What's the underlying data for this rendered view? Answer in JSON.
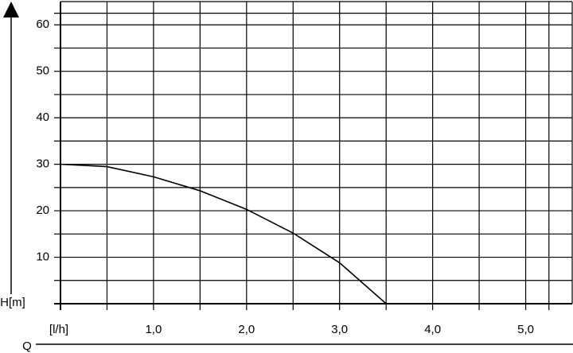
{
  "chart_data": {
    "type": "line",
    "x_label": "[l/h]",
    "x_name": "Q",
    "y_label": "H[m]",
    "x": [
      0,
      0.5,
      1.0,
      1.5,
      2.0,
      2.5,
      3.0,
      3.5
    ],
    "series": [
      {
        "name": "H",
        "color": "#000000",
        "values": [
          30,
          29.5,
          27.3,
          24.3,
          20.3,
          15.2,
          8.8,
          0
        ]
      }
    ],
    "xlim": [
      0,
      5.5
    ],
    "xticks": [
      {
        "value": 1,
        "label": "1,0"
      },
      {
        "value": 2,
        "label": "2,0"
      },
      {
        "value": 3,
        "label": "3,0"
      },
      {
        "value": 4,
        "label": "4,0"
      },
      {
        "value": 5,
        "label": "5,0"
      }
    ],
    "ylim": [
      0,
      65
    ],
    "yticks": [
      10,
      20,
      30,
      40,
      50,
      60
    ],
    "grid": true
  }
}
